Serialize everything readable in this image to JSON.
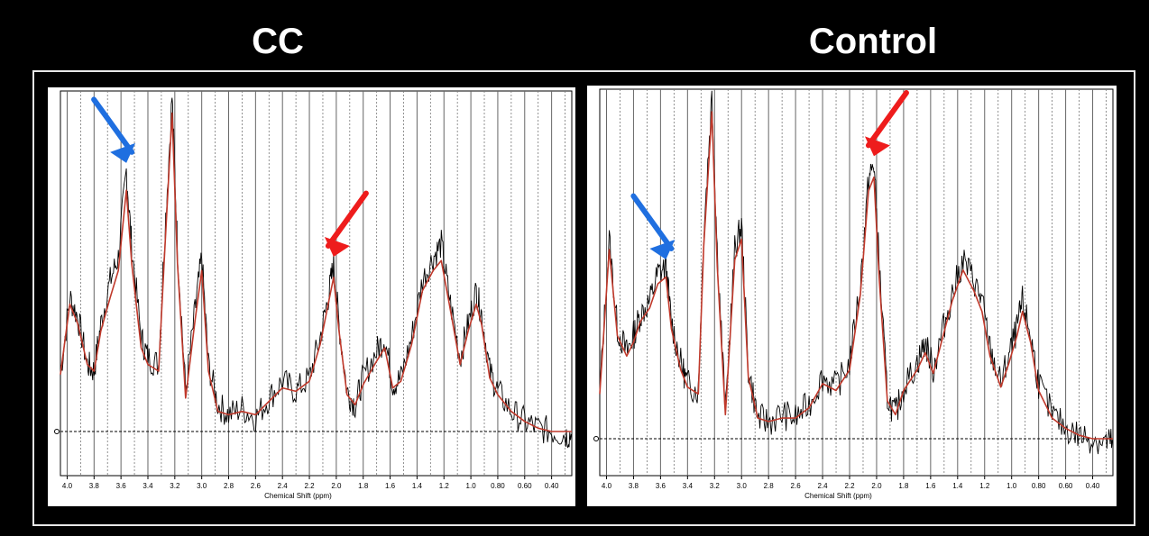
{
  "titles": {
    "left": "CC",
    "right": "Control"
  },
  "x_axis": {
    "label": "Chemical Shift (ppm)",
    "ticks": [
      "4.0",
      "3.8",
      "3.6",
      "3.4",
      "3.2",
      "3.0",
      "2.8",
      "2.6",
      "2.4",
      "2.2",
      "2.0",
      "1.8",
      "1.6",
      "1.4",
      "1.2",
      "1.0",
      "0.80",
      "0.60",
      "0.40"
    ]
  },
  "colors": {
    "spectrum": "#000000",
    "fit": "#c0392b",
    "arrow_blue": "#1f6fe0",
    "arrow_red": "#ee1c1c"
  },
  "chart_data": [
    {
      "type": "line",
      "title": "CC",
      "xlabel": "Chemical Shift (ppm)",
      "xlim": [
        4.05,
        0.25
      ],
      "x_direction": "reversed",
      "grid": true,
      "series": [
        {
          "name": "",
          "style": "noisy spectrum",
          "x": [
            4.05,
            3.98,
            3.92,
            3.85,
            3.8,
            3.75,
            3.68,
            3.62,
            3.56,
            3.52,
            3.45,
            3.4,
            3.32,
            3.28,
            3.22,
            3.18,
            3.12,
            3.05,
            3.0,
            2.95,
            2.88,
            2.8,
            2.7,
            2.6,
            2.5,
            2.4,
            2.3,
            2.2,
            2.12,
            2.06,
            2.02,
            1.98,
            1.92,
            1.86,
            1.8,
            1.7,
            1.64,
            1.58,
            1.52,
            1.44,
            1.36,
            1.28,
            1.22,
            1.16,
            1.08,
            1.02,
            0.96,
            0.92,
            0.86,
            0.8,
            0.7,
            0.6,
            0.5,
            0.4,
            0.3,
            0.25
          ],
          "y": [
            0.17,
            0.4,
            0.34,
            0.2,
            0.18,
            0.32,
            0.45,
            0.52,
            0.78,
            0.55,
            0.28,
            0.22,
            0.2,
            0.55,
            1.0,
            0.55,
            0.12,
            0.36,
            0.52,
            0.2,
            0.08,
            0.05,
            0.07,
            0.04,
            0.1,
            0.15,
            0.12,
            0.16,
            0.28,
            0.4,
            0.5,
            0.32,
            0.12,
            0.08,
            0.16,
            0.24,
            0.28,
            0.14,
            0.16,
            0.28,
            0.45,
            0.52,
            0.56,
            0.4,
            0.22,
            0.32,
            0.42,
            0.35,
            0.18,
            0.12,
            0.06,
            0.03,
            0.01,
            0.0,
            -0.01,
            -0.01
          ]
        },
        {
          "name": "",
          "style": "fit",
          "x": [
            4.05,
            3.98,
            3.92,
            3.85,
            3.8,
            3.75,
            3.68,
            3.62,
            3.56,
            3.52,
            3.45,
            3.4,
            3.32,
            3.28,
            3.22,
            3.18,
            3.12,
            3.05,
            3.0,
            2.95,
            2.88,
            2.8,
            2.7,
            2.6,
            2.5,
            2.4,
            2.3,
            2.2,
            2.12,
            2.06,
            2.02,
            1.98,
            1.92,
            1.86,
            1.8,
            1.7,
            1.64,
            1.58,
            1.52,
            1.44,
            1.36,
            1.28,
            1.22,
            1.16,
            1.08,
            1.02,
            0.96,
            0.92,
            0.86,
            0.8,
            0.7,
            0.6,
            0.5,
            0.4,
            0.3,
            0.25
          ],
          "y": [
            0.17,
            0.38,
            0.32,
            0.2,
            0.18,
            0.3,
            0.4,
            0.48,
            0.72,
            0.5,
            0.25,
            0.2,
            0.18,
            0.5,
            0.95,
            0.5,
            0.1,
            0.33,
            0.48,
            0.18,
            0.06,
            0.05,
            0.06,
            0.05,
            0.09,
            0.13,
            0.12,
            0.15,
            0.26,
            0.38,
            0.46,
            0.3,
            0.11,
            0.08,
            0.14,
            0.21,
            0.25,
            0.13,
            0.15,
            0.26,
            0.42,
            0.48,
            0.51,
            0.38,
            0.2,
            0.3,
            0.38,
            0.32,
            0.16,
            0.11,
            0.06,
            0.03,
            0.01,
            0.0,
            0.0,
            0.0
          ]
        }
      ],
      "annotations": [
        {
          "type": "arrow",
          "color": "blue",
          "points_to_ppm": 3.56
        },
        {
          "type": "arrow",
          "color": "red",
          "points_to_ppm": 2.02
        }
      ]
    },
    {
      "type": "line",
      "title": "Control",
      "xlabel": "Chemical Shift (ppm)",
      "xlim": [
        4.05,
        0.25
      ],
      "x_direction": "reversed",
      "grid": true,
      "series": [
        {
          "name": "",
          "style": "noisy spectrum",
          "x": [
            4.05,
            3.98,
            3.92,
            3.85,
            3.8,
            3.75,
            3.68,
            3.62,
            3.56,
            3.52,
            3.45,
            3.4,
            3.32,
            3.28,
            3.22,
            3.18,
            3.12,
            3.05,
            3.0,
            2.95,
            2.88,
            2.8,
            2.7,
            2.6,
            2.5,
            2.4,
            2.3,
            2.2,
            2.12,
            2.06,
            2.02,
            1.98,
            1.92,
            1.86,
            1.8,
            1.7,
            1.64,
            1.58,
            1.52,
            1.44,
            1.36,
            1.28,
            1.22,
            1.16,
            1.08,
            1.02,
            0.96,
            0.92,
            0.86,
            0.8,
            0.7,
            0.6,
            0.5,
            0.4,
            0.3,
            0.25
          ],
          "y": [
            0.13,
            0.58,
            0.32,
            0.25,
            0.3,
            0.36,
            0.4,
            0.48,
            0.5,
            0.34,
            0.22,
            0.16,
            0.14,
            0.6,
            1.0,
            0.55,
            0.08,
            0.55,
            0.62,
            0.2,
            0.06,
            0.05,
            0.07,
            0.06,
            0.1,
            0.18,
            0.15,
            0.22,
            0.45,
            0.75,
            0.8,
            0.5,
            0.12,
            0.07,
            0.15,
            0.22,
            0.28,
            0.2,
            0.3,
            0.42,
            0.52,
            0.46,
            0.4,
            0.26,
            0.16,
            0.24,
            0.32,
            0.4,
            0.3,
            0.16,
            0.07,
            0.03,
            0.01,
            0.0,
            -0.01,
            -0.01
          ]
        },
        {
          "name": "",
          "style": "fit",
          "x": [
            4.05,
            3.98,
            3.92,
            3.85,
            3.8,
            3.75,
            3.68,
            3.62,
            3.56,
            3.52,
            3.45,
            3.4,
            3.32,
            3.28,
            3.22,
            3.18,
            3.12,
            3.05,
            3.0,
            2.95,
            2.88,
            2.8,
            2.7,
            2.6,
            2.5,
            2.4,
            2.3,
            2.2,
            2.12,
            2.06,
            2.02,
            1.98,
            1.92,
            1.86,
            1.8,
            1.7,
            1.64,
            1.58,
            1.52,
            1.44,
            1.36,
            1.28,
            1.22,
            1.16,
            1.08,
            1.02,
            0.96,
            0.92,
            0.86,
            0.8,
            0.7,
            0.6,
            0.5,
            0.4,
            0.3,
            0.25
          ],
          "y": [
            0.13,
            0.55,
            0.3,
            0.24,
            0.28,
            0.34,
            0.38,
            0.45,
            0.47,
            0.32,
            0.2,
            0.15,
            0.13,
            0.56,
            0.95,
            0.5,
            0.07,
            0.52,
            0.58,
            0.18,
            0.06,
            0.05,
            0.06,
            0.06,
            0.09,
            0.16,
            0.14,
            0.2,
            0.42,
            0.72,
            0.76,
            0.46,
            0.11,
            0.07,
            0.14,
            0.2,
            0.25,
            0.19,
            0.28,
            0.4,
            0.49,
            0.43,
            0.37,
            0.24,
            0.15,
            0.22,
            0.3,
            0.37,
            0.28,
            0.14,
            0.06,
            0.03,
            0.01,
            0.0,
            0.0,
            0.0
          ]
        }
      ],
      "annotations": [
        {
          "type": "arrow",
          "color": "blue",
          "points_to_ppm": 3.56
        },
        {
          "type": "arrow",
          "color": "red",
          "points_to_ppm": 2.02
        }
      ]
    }
  ]
}
